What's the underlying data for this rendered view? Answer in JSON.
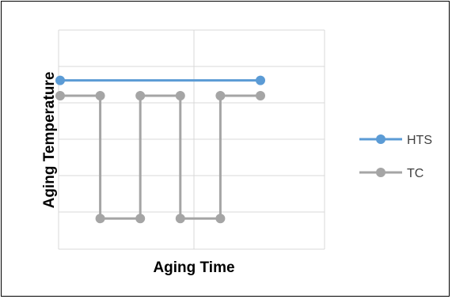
{
  "chart_data": {
    "type": "line",
    "xlabel": "Aging Time",
    "ylabel": "Aging Temperature",
    "grid": true,
    "legend_position": "right",
    "series": [
      {
        "name": "HTS",
        "color": "#5b9bd5",
        "points": [
          [
            0,
            5.5
          ],
          [
            10,
            5.5
          ]
        ]
      },
      {
        "name": "TC",
        "color": "#a5a5a5",
        "points": [
          [
            0,
            5
          ],
          [
            2,
            5
          ],
          [
            2,
            1
          ],
          [
            4,
            1
          ],
          [
            4,
            5
          ],
          [
            6,
            5
          ],
          [
            6,
            1
          ],
          [
            8,
            1
          ],
          [
            8,
            5
          ],
          [
            10,
            5
          ]
        ]
      }
    ]
  }
}
